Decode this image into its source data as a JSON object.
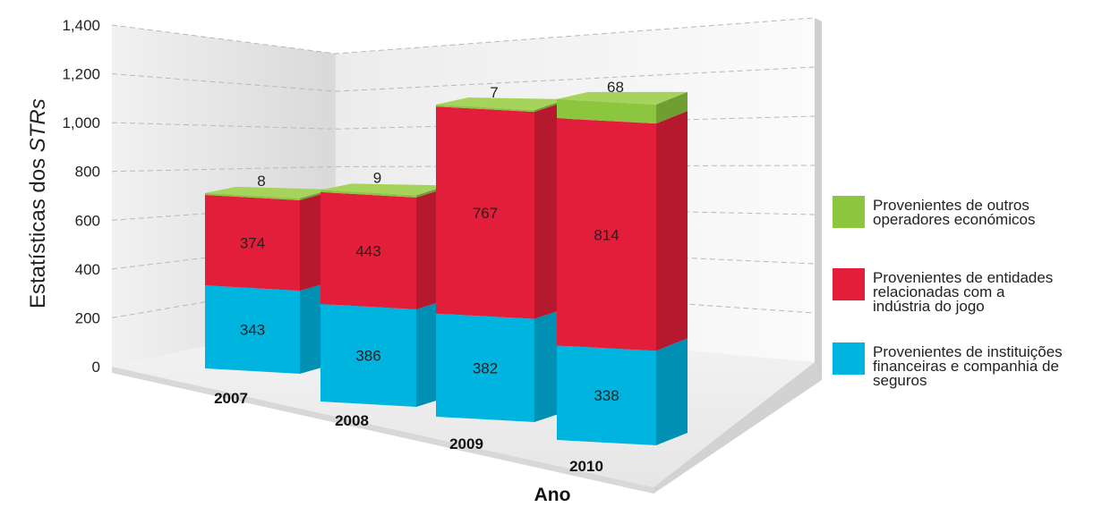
{
  "chart_data": {
    "type": "bar",
    "stacked": true,
    "three_d": true,
    "categories": [
      "2007",
      "2008",
      "2009",
      "2010"
    ],
    "series": [
      {
        "name": "Provenientes de instituições financeiras e companhia de seguros",
        "legend_lines": [
          "Provenientes de instituições",
          "financeiras e companhia de",
          "seguros"
        ],
        "color": "#00b4e0",
        "values": [
          343,
          386,
          382,
          338
        ]
      },
      {
        "name": "Provenientes de entidades relacionadas com a indústria do jogo",
        "legend_lines": [
          "Provenientes de entidades",
          "relacionadas com a",
          "indústria do jogo"
        ],
        "color": "#e31e3a",
        "values": [
          374,
          443,
          767,
          814
        ]
      },
      {
        "name": "Provenientes de outros operadores económicos",
        "legend_lines": [
          "Provenientes de outros",
          "operadores económicos"
        ],
        "color": "#8cc63e",
        "values": [
          8,
          9,
          7,
          68
        ]
      }
    ],
    "y_ticks": [
      "0",
      "200",
      "400",
      "600",
      "800",
      "1,000",
      "1,200",
      "1,400"
    ],
    "ylim": [
      0,
      1400
    ],
    "ylabel_prefix": "Estatísticas dos ",
    "ylabel_italic": "STRs",
    "xlabel": "Ano",
    "grid": true,
    "legend_position": "right"
  }
}
